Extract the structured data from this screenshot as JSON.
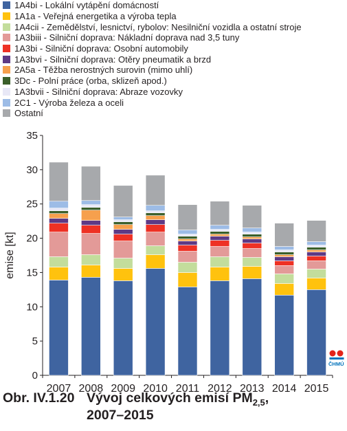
{
  "chart_data": {
    "type": "bar",
    "stacked": true,
    "categories": [
      "2007",
      "2008",
      "2009",
      "2010",
      "2011",
      "2012",
      "2013",
      "2014",
      "2015"
    ],
    "ylabel": "emise [kt]",
    "ylim": [
      0,
      35
    ],
    "yticks": [
      0,
      5,
      10,
      15,
      20,
      25,
      30,
      35
    ],
    "grid": false,
    "legend_position": "top",
    "series": [
      {
        "name": "1A4bi - Lokální vytápění domácností",
        "color": "#3f64a0",
        "values": [
          13.9,
          14.3,
          13.8,
          15.6,
          12.9,
          13.8,
          14.1,
          11.7,
          12.5
        ]
      },
      {
        "name": "1A1a - Veřejná energetika a výroba tepla",
        "color": "#ffc20e",
        "values": [
          1.9,
          1.8,
          1.8,
          2.0,
          2.1,
          2.0,
          1.8,
          1.7,
          1.7
        ]
      },
      {
        "name": "1A4cii - Zemědělství, lesnictví, rybolov: Nesilniční vozidla a ostatní stroje",
        "color": "#c3dd9c",
        "values": [
          1.5,
          1.5,
          1.5,
          1.3,
          1.5,
          1.5,
          1.3,
          1.4,
          1.3
        ]
      },
      {
        "name": "1A3biii - Silniční doprava: Nákladní doprava nad 3,5 tuny",
        "color": "#e39a98",
        "values": [
          3.6,
          3.1,
          2.5,
          2.0,
          1.6,
          1.5,
          1.3,
          1.2,
          1.2
        ]
      },
      {
        "name": "1A3bi - Silniční doprava: Osobní automobily",
        "color": "#ee3124",
        "values": [
          1.3,
          1.2,
          1.0,
          1.1,
          0.9,
          0.9,
          0.8,
          0.7,
          0.7
        ]
      },
      {
        "name": "1A3bvi - Silniční doprava: Otěry pneumatik a brzd",
        "color": "#5e3a85",
        "values": [
          0.7,
          0.7,
          0.7,
          0.7,
          0.6,
          0.6,
          0.6,
          0.6,
          0.6
        ]
      },
      {
        "name": "2A5a - Těžba nerostných surovin (mimo uhlí)",
        "color": "#f6a04d",
        "values": [
          0.7,
          1.5,
          0.7,
          0.6,
          0.3,
          0.3,
          0.3,
          0.3,
          0.3
        ]
      },
      {
        "name": "3Dc - Polní práce (orba, sklizeň apod.)",
        "color": "#3b5f2a",
        "values": [
          0.4,
          0.4,
          0.4,
          0.4,
          0.4,
          0.4,
          0.4,
          0.4,
          0.4
        ]
      },
      {
        "name": "1A3bvii - Silniční doprava: Abraze vozovky",
        "color": "#e8e8f6",
        "values": [
          0.4,
          0.4,
          0.3,
          0.3,
          0.3,
          0.3,
          0.3,
          0.3,
          0.3
        ]
      },
      {
        "name": "2C1 - Výroba železa a oceli",
        "color": "#9dbce6",
        "values": [
          1.0,
          0.6,
          0.4,
          0.8,
          0.6,
          0.6,
          0.6,
          0.5,
          0.5
        ]
      },
      {
        "name": "Ostatní",
        "color": "#a7a9ac",
        "values": [
          5.7,
          5.0,
          4.6,
          4.4,
          3.7,
          3.5,
          3.3,
          3.4,
          3.1
        ]
      }
    ]
  },
  "caption": {
    "number": "Obr. IV.1.20",
    "title_main": "Vývoj celkových emisí PM",
    "title_sub": "2,5",
    "title_tail": ",",
    "title_line2": "2007–2015"
  },
  "logo": {
    "text": "ČHMÚ",
    "color_red": "#e2231a",
    "color_blue": "#0072bc"
  }
}
